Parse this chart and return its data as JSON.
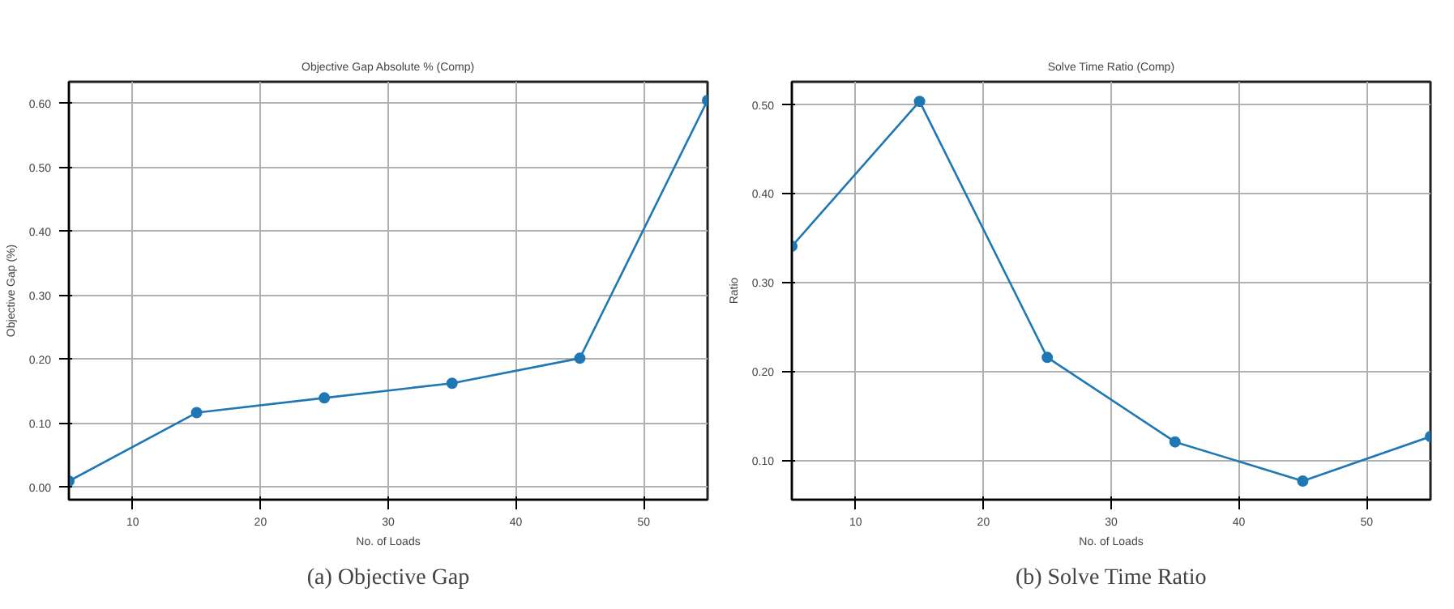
{
  "chart_data": [
    {
      "type": "line",
      "title": "Objective Gap Absolute % (Comp)",
      "xlabel": "No. of Loads",
      "ylabel": "Objective Gap (%)",
      "x": [
        5,
        15,
        25,
        35,
        45,
        55
      ],
      "series": [
        {
          "color": "#1f77b4",
          "values": [
            0.01,
            0.117,
            0.14,
            0.163,
            0.202,
            0.605
          ]
        }
      ],
      "xlim": [
        5,
        55
      ],
      "xticks": [
        10,
        20,
        30,
        40,
        50
      ],
      "ylim": [
        -0.019,
        0.634
      ],
      "yticks": [
        {
          "value": 0,
          "label": "0.00"
        },
        {
          "value": 0.1,
          "label": "0.10"
        },
        {
          "value": 0.2,
          "label": "0.20"
        },
        {
          "value": 0.3,
          "label": "0.30"
        },
        {
          "value": 0.4,
          "label": "0.40"
        },
        {
          "value": 0.5,
          "label": "0.50"
        },
        {
          "value": 0.6,
          "label": "0.60"
        }
      ],
      "grid": true,
      "marker": "circle",
      "line_style": "solid",
      "annotations": [
        "(a) Objective Gap"
      ]
    },
    {
      "type": "line",
      "title": "Solve Time Ratio (Comp)",
      "xlabel": "No. of Loads",
      "ylabel": "Ratio",
      "x": [
        5,
        15,
        25,
        35,
        45,
        55
      ],
      "series": [
        {
          "color": "#1f77b4",
          "values": [
            0.341,
            0.504,
            0.216,
            0.121,
            0.077,
            0.127
          ]
        }
      ],
      "xlim": [
        5,
        55
      ],
      "xticks": [
        10,
        20,
        30,
        40,
        50
      ],
      "ylim": [
        0.056,
        0.526
      ],
      "yticks": [
        {
          "value": 0.1,
          "label": "0.10"
        },
        {
          "value": 0.2,
          "label": "0.20"
        },
        {
          "value": 0.3,
          "label": "0.30"
        },
        {
          "value": 0.4,
          "label": "0.40"
        },
        {
          "value": 0.5,
          "label": "0.50"
        }
      ],
      "grid": true,
      "marker": "circle",
      "line_style": "solid",
      "annotations": [
        "(b) Solve Time Ratio"
      ]
    }
  ]
}
